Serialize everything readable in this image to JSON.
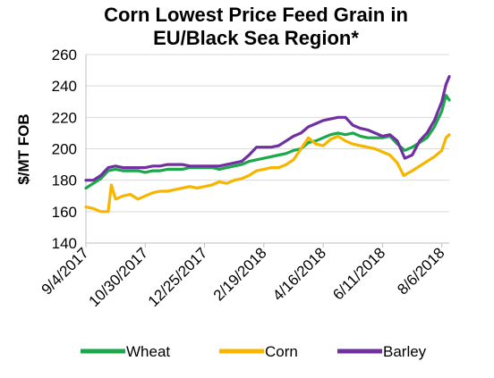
{
  "chart_data": {
    "type": "line",
    "title_line1": "Corn Lowest Price Feed Grain in",
    "title_line2": "EU/Black Sea Region*",
    "xlabel": "",
    "ylabel": "$/MT FOB",
    "ylim": [
      140,
      260
    ],
    "yticks": [
      140,
      160,
      180,
      200,
      220,
      240,
      260
    ],
    "xticks": [
      "9/4/2017",
      "10/30/2017",
      "12/25/2017",
      "2/19/2018",
      "4/16/2018",
      "6/11/2018",
      "8/6/2018"
    ],
    "xlim": [
      "2017-09-04",
      "2018-08-13"
    ],
    "grid": "horizontal",
    "legend": "bottom",
    "series": [
      {
        "name": "Wheat",
        "color": "#1aa84a",
        "points": [
          [
            "2017-09-04",
            175
          ],
          [
            "2017-09-11",
            178
          ],
          [
            "2017-09-18",
            181
          ],
          [
            "2017-09-25",
            186
          ],
          [
            "2017-10-02",
            187
          ],
          [
            "2017-10-09",
            186
          ],
          [
            "2017-10-16",
            186
          ],
          [
            "2017-10-23",
            186
          ],
          [
            "2017-10-30",
            185
          ],
          [
            "2017-11-06",
            186
          ],
          [
            "2017-11-13",
            186
          ],
          [
            "2017-11-20",
            187
          ],
          [
            "2017-11-27",
            187
          ],
          [
            "2017-12-04",
            187
          ],
          [
            "2017-12-11",
            188
          ],
          [
            "2017-12-18",
            188
          ],
          [
            "2017-12-25",
            188
          ],
          [
            "2018-01-01",
            188
          ],
          [
            "2018-01-08",
            187
          ],
          [
            "2018-01-15",
            188
          ],
          [
            "2018-01-22",
            189
          ],
          [
            "2018-01-29",
            190
          ],
          [
            "2018-02-05",
            192
          ],
          [
            "2018-02-12",
            193
          ],
          [
            "2018-02-19",
            194
          ],
          [
            "2018-02-26",
            195
          ],
          [
            "2018-03-05",
            196
          ],
          [
            "2018-03-12",
            197
          ],
          [
            "2018-03-19",
            199
          ],
          [
            "2018-03-26",
            200
          ],
          [
            "2018-04-02",
            204
          ],
          [
            "2018-04-09",
            205
          ],
          [
            "2018-04-16",
            207
          ],
          [
            "2018-04-23",
            209
          ],
          [
            "2018-04-30",
            210
          ],
          [
            "2018-05-07",
            209
          ],
          [
            "2018-05-14",
            210
          ],
          [
            "2018-05-21",
            208
          ],
          [
            "2018-05-28",
            207
          ],
          [
            "2018-06-04",
            207
          ],
          [
            "2018-06-11",
            207
          ],
          [
            "2018-06-18",
            208
          ],
          [
            "2018-06-25",
            203
          ],
          [
            "2018-07-02",
            199
          ],
          [
            "2018-07-09",
            201
          ],
          [
            "2018-07-16",
            204
          ],
          [
            "2018-07-23",
            207
          ],
          [
            "2018-07-30",
            214
          ],
          [
            "2018-08-06",
            224
          ],
          [
            "2018-08-10",
            234
          ],
          [
            "2018-08-13",
            231
          ]
        ]
      },
      {
        "name": "Corn",
        "color": "#f7b500",
        "points": [
          [
            "2017-09-04",
            163
          ],
          [
            "2017-09-11",
            162
          ],
          [
            "2017-09-18",
            160
          ],
          [
            "2017-09-25",
            160
          ],
          [
            "2017-09-28",
            177
          ],
          [
            "2017-10-02",
            168
          ],
          [
            "2017-10-09",
            170
          ],
          [
            "2017-10-16",
            171
          ],
          [
            "2017-10-23",
            168
          ],
          [
            "2017-10-30",
            170
          ],
          [
            "2017-11-06",
            172
          ],
          [
            "2017-11-13",
            173
          ],
          [
            "2017-11-20",
            173
          ],
          [
            "2017-11-27",
            174
          ],
          [
            "2017-12-04",
            175
          ],
          [
            "2017-12-11",
            176
          ],
          [
            "2017-12-18",
            175
          ],
          [
            "2017-12-25",
            176
          ],
          [
            "2018-01-01",
            177
          ],
          [
            "2018-01-08",
            179
          ],
          [
            "2018-01-15",
            178
          ],
          [
            "2018-01-22",
            180
          ],
          [
            "2018-01-29",
            181
          ],
          [
            "2018-02-05",
            183
          ],
          [
            "2018-02-12",
            186
          ],
          [
            "2018-02-19",
            187
          ],
          [
            "2018-02-26",
            188
          ],
          [
            "2018-03-05",
            188
          ],
          [
            "2018-03-12",
            190
          ],
          [
            "2018-03-19",
            193
          ],
          [
            "2018-03-26",
            200
          ],
          [
            "2018-04-02",
            207
          ],
          [
            "2018-04-09",
            203
          ],
          [
            "2018-04-16",
            202
          ],
          [
            "2018-04-23",
            206
          ],
          [
            "2018-04-30",
            208
          ],
          [
            "2018-05-07",
            205
          ],
          [
            "2018-05-14",
            203
          ],
          [
            "2018-05-21",
            202
          ],
          [
            "2018-05-28",
            201
          ],
          [
            "2018-06-04",
            200
          ],
          [
            "2018-06-11",
            198
          ],
          [
            "2018-06-18",
            196
          ],
          [
            "2018-06-25",
            191
          ],
          [
            "2018-07-01",
            183
          ],
          [
            "2018-07-09",
            186
          ],
          [
            "2018-07-16",
            189
          ],
          [
            "2018-07-23",
            192
          ],
          [
            "2018-07-30",
            195
          ],
          [
            "2018-08-06",
            199
          ],
          [
            "2018-08-10",
            207
          ],
          [
            "2018-08-13",
            209
          ]
        ]
      },
      {
        "name": "Barley",
        "color": "#7030a0",
        "points": [
          [
            "2017-09-04",
            180
          ],
          [
            "2017-09-11",
            180
          ],
          [
            "2017-09-18",
            183
          ],
          [
            "2017-09-25",
            188
          ],
          [
            "2017-10-02",
            189
          ],
          [
            "2017-10-09",
            188
          ],
          [
            "2017-10-16",
            188
          ],
          [
            "2017-10-23",
            188
          ],
          [
            "2017-10-30",
            188
          ],
          [
            "2017-11-06",
            189
          ],
          [
            "2017-11-13",
            189
          ],
          [
            "2017-11-20",
            190
          ],
          [
            "2017-11-27",
            190
          ],
          [
            "2017-12-04",
            190
          ],
          [
            "2017-12-11",
            189
          ],
          [
            "2017-12-18",
            189
          ],
          [
            "2017-12-25",
            189
          ],
          [
            "2018-01-01",
            189
          ],
          [
            "2018-01-08",
            189
          ],
          [
            "2018-01-15",
            190
          ],
          [
            "2018-01-22",
            191
          ],
          [
            "2018-01-29",
            192
          ],
          [
            "2018-02-05",
            196
          ],
          [
            "2018-02-12",
            201
          ],
          [
            "2018-02-19",
            201
          ],
          [
            "2018-02-26",
            201
          ],
          [
            "2018-03-05",
            202
          ],
          [
            "2018-03-12",
            205
          ],
          [
            "2018-03-19",
            208
          ],
          [
            "2018-03-26",
            210
          ],
          [
            "2018-04-02",
            214
          ],
          [
            "2018-04-09",
            216
          ],
          [
            "2018-04-16",
            218
          ],
          [
            "2018-04-23",
            219
          ],
          [
            "2018-04-30",
            220
          ],
          [
            "2018-05-07",
            220
          ],
          [
            "2018-05-14",
            215
          ],
          [
            "2018-05-21",
            213
          ],
          [
            "2018-05-28",
            212
          ],
          [
            "2018-06-04",
            210
          ],
          [
            "2018-06-11",
            208
          ],
          [
            "2018-06-18",
            209
          ],
          [
            "2018-06-25",
            205
          ],
          [
            "2018-07-02",
            194
          ],
          [
            "2018-07-09",
            196
          ],
          [
            "2018-07-16",
            205
          ],
          [
            "2018-07-23",
            210
          ],
          [
            "2018-07-30",
            218
          ],
          [
            "2018-08-06",
            230
          ],
          [
            "2018-08-10",
            241
          ],
          [
            "2018-08-13",
            246
          ]
        ]
      }
    ]
  }
}
